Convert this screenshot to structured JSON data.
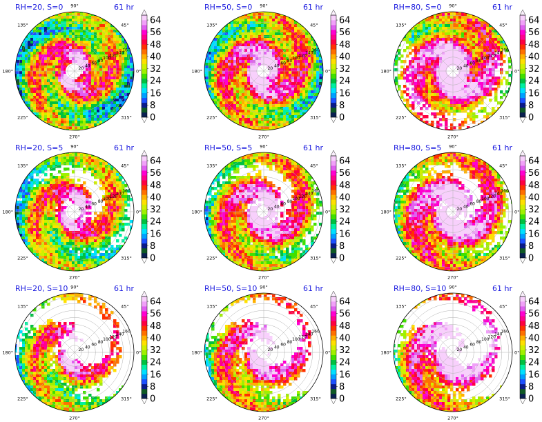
{
  "colors": {
    "title": "#1a1adf",
    "scale": [
      "#0a2050",
      "#0f5a25",
      "#0a1a8a",
      "#1e50ff",
      "#00a0ff",
      "#00e0ff",
      "#00f0a0",
      "#00c040",
      "#40e000",
      "#a0f000",
      "#d0f000",
      "#ffe000",
      "#ffb000",
      "#ff7000",
      "#ff3000",
      "#ff0040",
      "#ff0090",
      "#ff00d0",
      "#e060f0",
      "#f0a0f8",
      "#f8d0fc"
    ]
  },
  "chart_data": [
    {
      "type": "heatmap",
      "projection": "polar",
      "title_left": "RH=20, S=0",
      "title_right": "61 hr",
      "angle_labels": [
        "0°",
        "45°",
        "90°",
        "135°",
        "180°",
        "225°",
        "270°",
        "315°"
      ],
      "radius_labels": [
        "20",
        "40",
        "60",
        "80",
        "100",
        "120",
        "140",
        "160"
      ],
      "colorbar_ticks": [
        "0",
        "8",
        "16",
        "24",
        "32",
        "40",
        "48",
        "56",
        "64"
      ],
      "colorbar_range": [
        0,
        64
      ],
      "rh": 20,
      "s": 0,
      "time_hr": 61
    },
    {
      "type": "heatmap",
      "projection": "polar",
      "title_left": "RH=50, S=0",
      "title_right": "61 hr",
      "angle_labels": [
        "0°",
        "45°",
        "90°",
        "135°",
        "180°",
        "225°",
        "270°",
        "315°"
      ],
      "radius_labels": [
        "20",
        "40",
        "60",
        "80",
        "100",
        "120",
        "140",
        "160"
      ],
      "colorbar_ticks": [
        "0",
        "8",
        "16",
        "24",
        "32",
        "40",
        "48",
        "56",
        "64"
      ],
      "colorbar_range": [
        0,
        64
      ],
      "rh": 50,
      "s": 0,
      "time_hr": 61
    },
    {
      "type": "heatmap",
      "projection": "polar",
      "title_left": "RH=80, S=0",
      "title_right": "61 hr",
      "angle_labels": [
        "0°",
        "45°",
        "90°",
        "135°",
        "180°",
        "225°",
        "270°",
        "315°"
      ],
      "radius_labels": [
        "20",
        "40",
        "60",
        "80",
        "100",
        "120",
        "140",
        "160"
      ],
      "colorbar_ticks": [
        "0",
        "8",
        "16",
        "24",
        "32",
        "40",
        "48",
        "56",
        "64"
      ],
      "colorbar_range": [
        0,
        64
      ],
      "rh": 80,
      "s": 0,
      "time_hr": 61
    },
    {
      "type": "heatmap",
      "projection": "polar",
      "title_left": "RH=20, S=5",
      "title_right": "61 hr",
      "angle_labels": [
        "0°",
        "45°",
        "90°",
        "135°",
        "180°",
        "225°",
        "270°",
        "315°"
      ],
      "radius_labels": [
        "20",
        "40",
        "60",
        "80",
        "100",
        "120",
        "140",
        "160"
      ],
      "colorbar_ticks": [
        "0",
        "8",
        "16",
        "24",
        "32",
        "40",
        "48",
        "56",
        "64"
      ],
      "colorbar_range": [
        0,
        64
      ],
      "rh": 20,
      "s": 5,
      "time_hr": 61
    },
    {
      "type": "heatmap",
      "projection": "polar",
      "title_left": "RH=50, S=5",
      "title_right": "61 hr",
      "angle_labels": [
        "0°",
        "45°",
        "90°",
        "135°",
        "180°",
        "225°",
        "270°",
        "315°"
      ],
      "radius_labels": [
        "20",
        "40",
        "60",
        "80",
        "100",
        "120",
        "140",
        "160"
      ],
      "colorbar_ticks": [
        "0",
        "8",
        "16",
        "24",
        "32",
        "40",
        "48",
        "56",
        "64"
      ],
      "colorbar_range": [
        0,
        64
      ],
      "rh": 50,
      "s": 5,
      "time_hr": 61
    },
    {
      "type": "heatmap",
      "projection": "polar",
      "title_left": "RH=80, S=5",
      "title_right": "61 hr",
      "angle_labels": [
        "0°",
        "45°",
        "90°",
        "135°",
        "180°",
        "225°",
        "270°",
        "315°"
      ],
      "radius_labels": [
        "20",
        "40",
        "60",
        "80",
        "100",
        "120",
        "140",
        "160"
      ],
      "colorbar_ticks": [
        "0",
        "8",
        "16",
        "24",
        "32",
        "40",
        "48",
        "56",
        "64"
      ],
      "colorbar_range": [
        0,
        64
      ],
      "rh": 80,
      "s": 5,
      "time_hr": 61
    },
    {
      "type": "heatmap",
      "projection": "polar",
      "title_left": "RH=20, S=10",
      "title_right": "61 hr",
      "angle_labels": [
        "0°",
        "45°",
        "90°",
        "135°",
        "180°",
        "225°",
        "270°",
        "315°"
      ],
      "radius_labels": [
        "20",
        "40",
        "60",
        "80",
        "100",
        "120",
        "140",
        "160"
      ],
      "colorbar_ticks": [
        "0",
        "8",
        "16",
        "24",
        "32",
        "40",
        "48",
        "56",
        "64"
      ],
      "colorbar_range": [
        0,
        64
      ],
      "rh": 20,
      "s": 10,
      "time_hr": 61
    },
    {
      "type": "heatmap",
      "projection": "polar",
      "title_left": "RH=50, S=10",
      "title_right": "61 hr",
      "angle_labels": [
        "0°",
        "45°",
        "90°",
        "135°",
        "180°",
        "225°",
        "270°",
        "315°"
      ],
      "radius_labels": [
        "20",
        "40",
        "60",
        "80",
        "100",
        "120",
        "140",
        "160"
      ],
      "colorbar_ticks": [
        "0",
        "8",
        "16",
        "24",
        "32",
        "40",
        "48",
        "56",
        "64"
      ],
      "colorbar_range": [
        0,
        64
      ],
      "rh": 50,
      "s": 10,
      "time_hr": 61
    },
    {
      "type": "heatmap",
      "projection": "polar",
      "title_left": "RH=80, S=10",
      "title_right": "61 hr",
      "angle_labels": [
        "0°",
        "45°",
        "90°",
        "135°",
        "180°",
        "225°",
        "270°",
        "315°"
      ],
      "radius_labels": [
        "20",
        "40",
        "60",
        "80",
        "100",
        "120",
        "140",
        "160"
      ],
      "colorbar_ticks": [
        "0",
        "8",
        "16",
        "24",
        "32",
        "40",
        "48",
        "56",
        "64"
      ],
      "colorbar_range": [
        0,
        64
      ],
      "rh": 80,
      "s": 10,
      "time_hr": 61
    }
  ]
}
